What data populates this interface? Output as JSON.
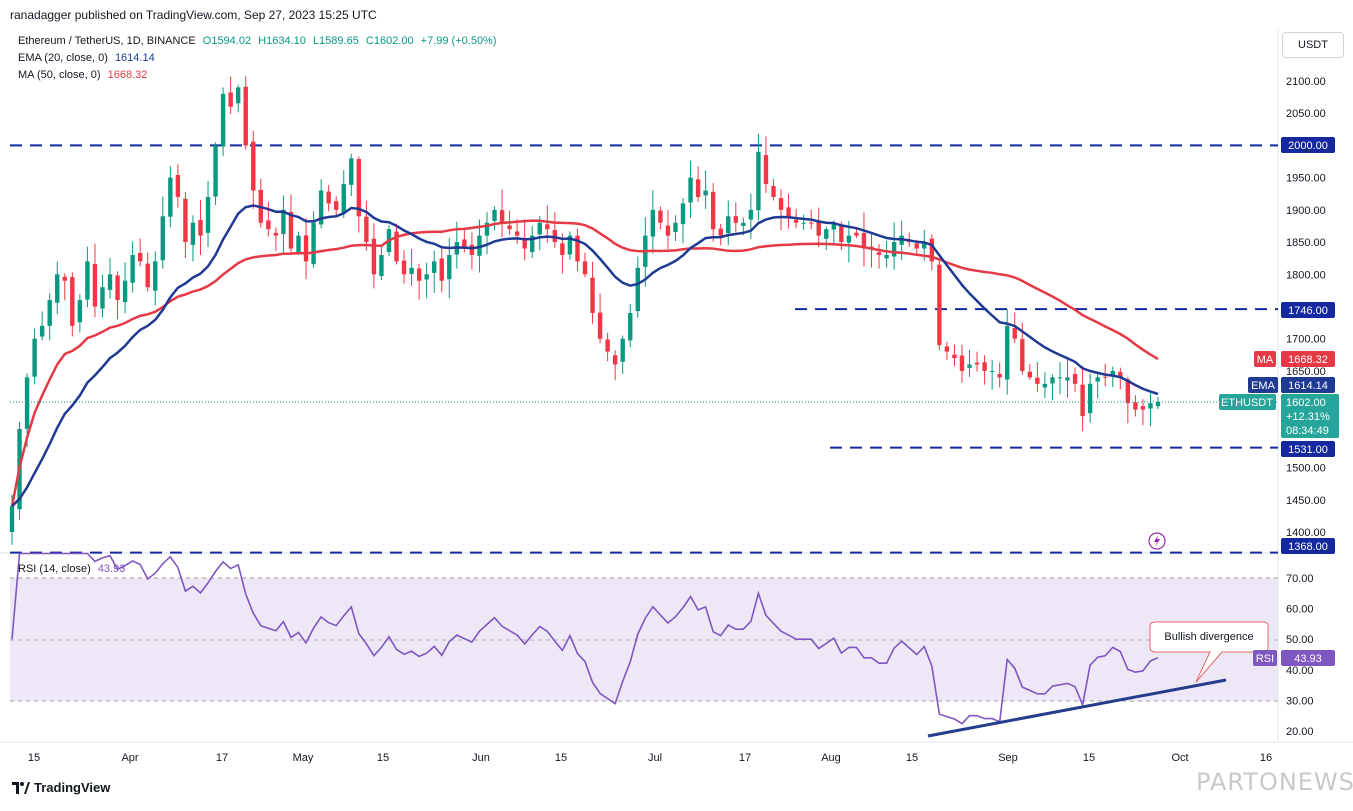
{
  "header": {
    "published_by": "ranadagger published on TradingView.com, Sep 27, 2023 15:25 UTC"
  },
  "legend": {
    "symbol": "Ethereum / TetherUS, 1D, BINANCE",
    "open": "O1594.02",
    "high": "H1634.10",
    "low": "L1589.65",
    "close": "C1602.00",
    "change": "+7.99 (+0.50%)",
    "ema_label": "EMA (20, close, 0)",
    "ema_value": "1614.14",
    "ma_label": "MA (50, close, 0)",
    "ma_value": "1668.32",
    "rsi_label": "RSI (14, close)",
    "rsi_value": "43.93"
  },
  "currency_button": "USDT",
  "price_axis": [
    "2100.00",
    "2050.00",
    "1950.00",
    "1900.00",
    "1850.00",
    "1800.00",
    "1700.00",
    "1650.00",
    "1500.00",
    "1450.00",
    "1400.00"
  ],
  "rsi_axis": [
    "70.00",
    "60.00",
    "50.00",
    "40.00",
    "30.00",
    "20.00"
  ],
  "time_axis": [
    "15",
    "Apr",
    "17",
    "May",
    "15",
    "Jun",
    "15",
    "Jul",
    "17",
    "Aug",
    "15",
    "Sep",
    "15",
    "Oct",
    "16"
  ],
  "levels": {
    "l2000": "2000.00",
    "l1746": "1746.00",
    "l1531": "1531.00",
    "l1368": "1368.00"
  },
  "tags": {
    "ma_name": "MA",
    "ma_value": "1668.32",
    "ema_name": "EMA",
    "ema_value": "1614.14",
    "symbol_name": "ETHUSDT",
    "price": "1602.00",
    "pct": "+12.31%",
    "countdown": "08:34:49",
    "rsi_name": "RSI",
    "rsi_value": "43.93"
  },
  "annotation": "Bullish divergence",
  "footer": {
    "brand": "TradingView",
    "watermark": "PARTONEWS.IR"
  },
  "colors": {
    "up": "#089981",
    "down": "#f23645",
    "ema": "#1f3a93",
    "ma": "#e53945",
    "rsi": "#7e57c2",
    "level": "#1428a0"
  },
  "chart_data": {
    "type": "candlestick",
    "symbol": "ETHUSDT",
    "price_range": [
      1368,
      2140
    ],
    "rsi_range": [
      15,
      78
    ],
    "horizontal_levels": [
      2000,
      1746,
      1531,
      1368
    ],
    "ohlc_approx_closes": [
      1440,
      1560,
      1640,
      1700,
      1720,
      1760,
      1800,
      1790,
      1720,
      1760,
      1820,
      1750,
      1780,
      1800,
      1760,
      1790,
      1830,
      1820,
      1780,
      1820,
      1890,
      1950,
      1920,
      1850,
      1880,
      1860,
      1920,
      2000,
      2080,
      2060,
      2090,
      2000,
      1930,
      1880,
      1870,
      1860,
      1900,
      1840,
      1860,
      1820,
      1880,
      1930,
      1910,
      1900,
      1940,
      1980,
      1890,
      1850,
      1800,
      1830,
      1870,
      1820,
      1800,
      1810,
      1790,
      1800,
      1820,
      1790,
      1830,
      1850,
      1840,
      1830,
      1860,
      1880,
      1900,
      1880,
      1870,
      1860,
      1840,
      1860,
      1880,
      1870,
      1850,
      1830,
      1860,
      1820,
      1800,
      1740,
      1700,
      1680,
      1660,
      1700,
      1740,
      1810,
      1860,
      1900,
      1880,
      1860,
      1880,
      1910,
      1950,
      1920,
      1930,
      1870,
      1860,
      1890,
      1880,
      1880,
      1900,
      1990,
      1940,
      1920,
      1900,
      1890,
      1880,
      1880,
      1880,
      1860,
      1870,
      1880,
      1850,
      1860,
      1860,
      1840,
      1840,
      1830,
      1830,
      1850,
      1860,
      1850,
      1840,
      1850,
      1820,
      1690,
      1680,
      1670,
      1650,
      1660,
      1660,
      1650,
      1650,
      1640,
      1720,
      1700,
      1650,
      1640,
      1630,
      1630,
      1640,
      1640,
      1640,
      1630,
      1580,
      1630,
      1640,
      1640,
      1650,
      1640,
      1600,
      1590,
      1590,
      1600,
      1602
    ],
    "ema20_last": 1614.14,
    "ma50_last": 1668.32,
    "last_price": 1602.0,
    "rsi_last": 43.93,
    "rsi_levels": [
      70,
      50,
      30
    ],
    "annotations": [
      "Bullish divergence"
    ]
  }
}
